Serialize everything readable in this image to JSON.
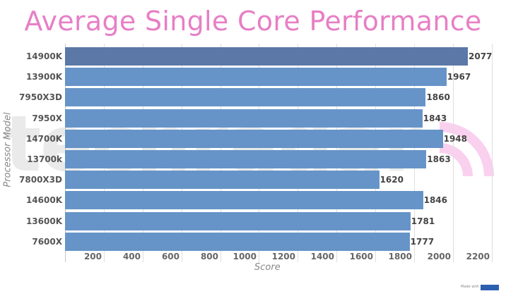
{
  "chart_data": {
    "type": "bar",
    "orientation": "horizontal",
    "title": "Average Single Core Performance",
    "xlabel": "Score",
    "ylabel": "Processor Model",
    "categories": [
      "14900K",
      "13900K",
      "7950X3D",
      "7950X",
      "14700K",
      "13700k",
      "7800X3D",
      "14600K",
      "13600K",
      "7600X"
    ],
    "values": [
      2077,
      1967,
      1860,
      1843,
      1948,
      1863,
      1620,
      1846,
      1781,
      1777
    ],
    "xlim": [
      0,
      2275
    ],
    "x_ticks": [
      200,
      400,
      600,
      800,
      1000,
      1200,
      1400,
      1600,
      1800,
      2000,
      2200
    ],
    "grid": true,
    "data_labels": true,
    "highlight_index": 0,
    "colors": {
      "bar": "#6694c8",
      "highlight_bar": "#5b78a6",
      "title": "#e77fc5"
    }
  },
  "watermark": {
    "text": "techradar"
  },
  "footer": {
    "made_with": "Made with",
    "brand": "infogram"
  }
}
